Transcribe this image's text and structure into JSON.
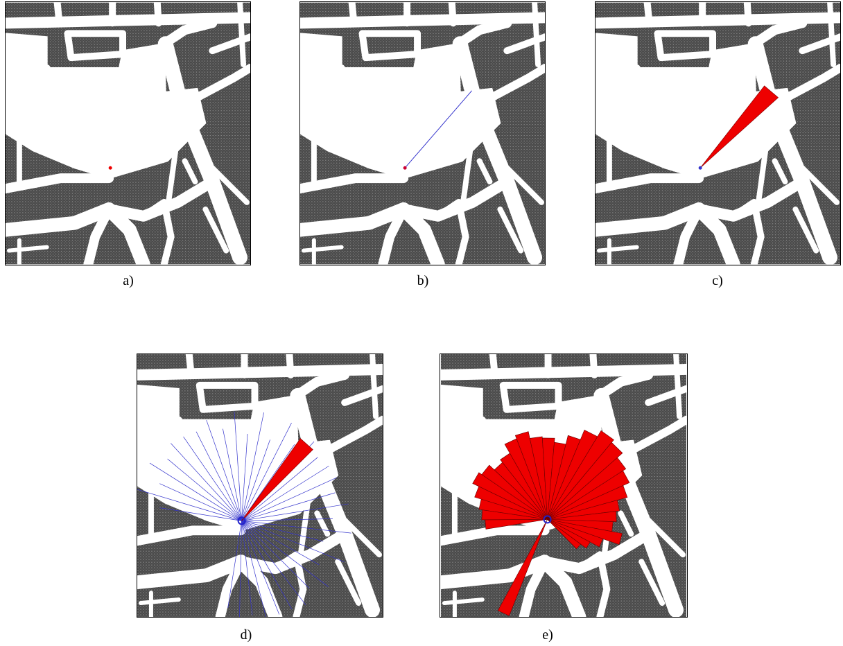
{
  "captions": [
    "a)",
    "b)",
    "c)",
    "d)",
    "e)"
  ]
}
